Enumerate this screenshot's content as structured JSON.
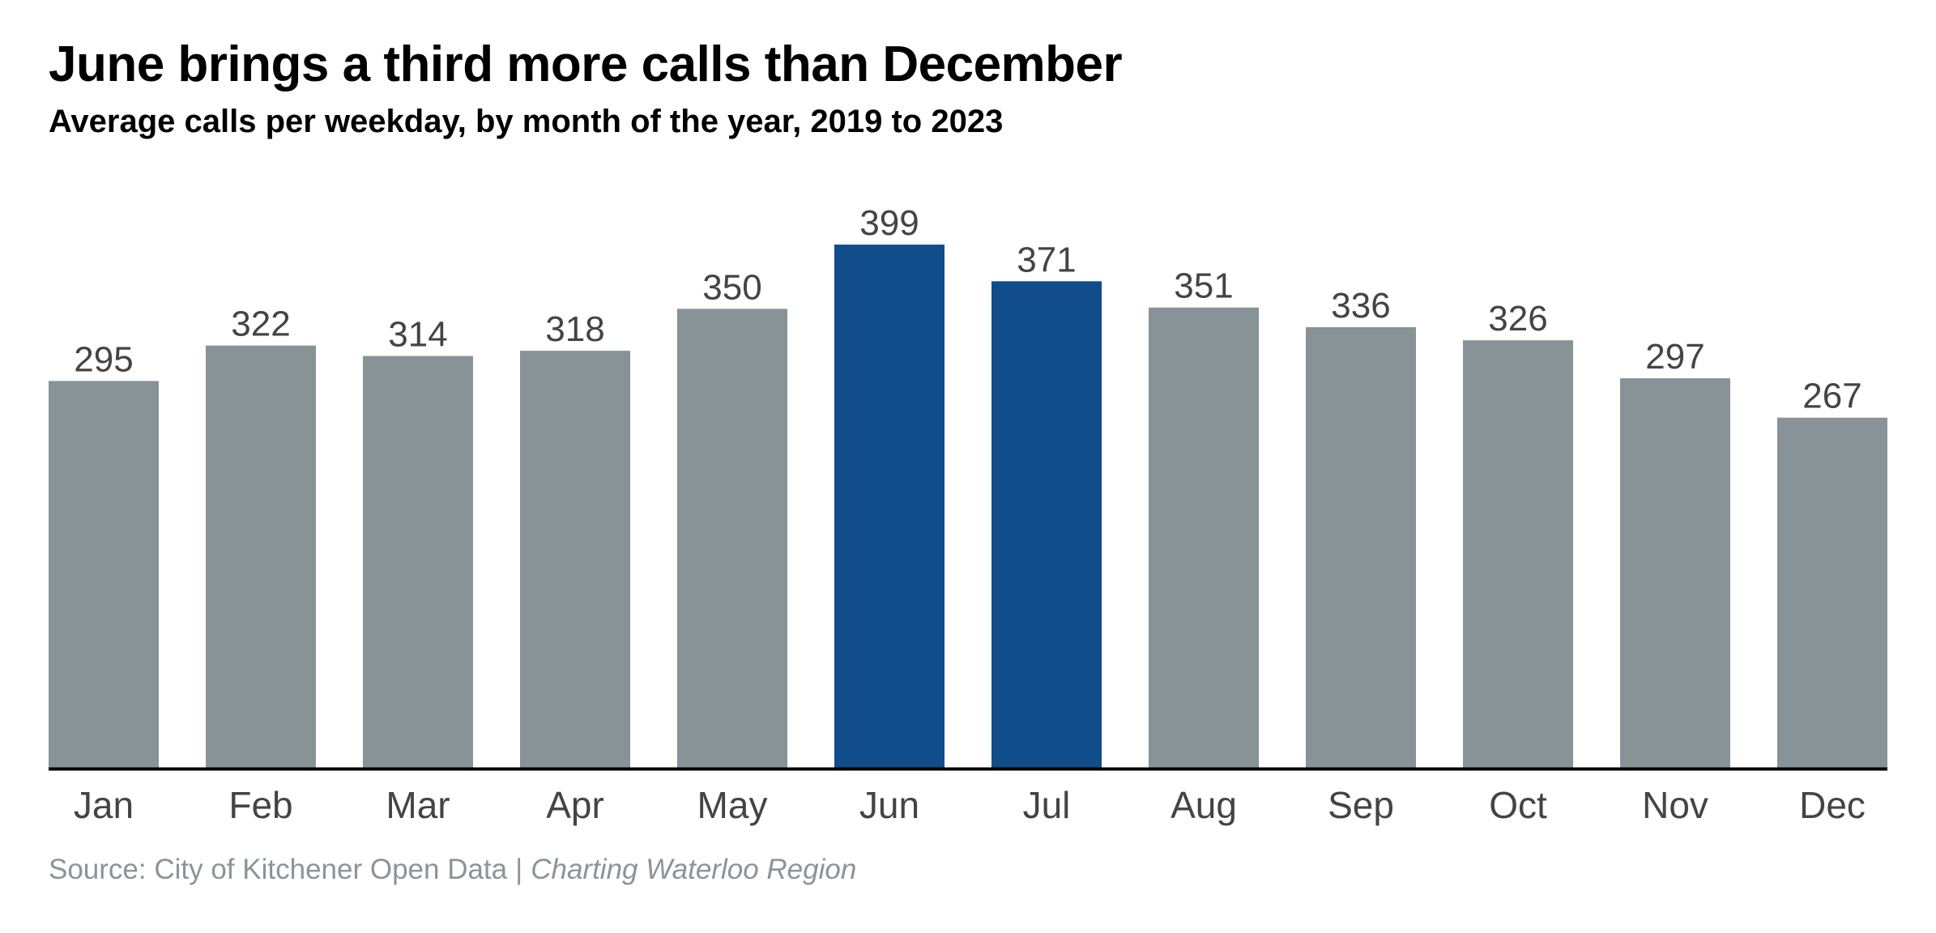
{
  "title": "June brings a third more calls than December",
  "subtitle": "Average calls per weekday, by month of the year, 2019 to 2023",
  "source": {
    "text": "Source: City of Kitchener Open Data",
    "separator": "|",
    "credit": "Charting Waterloo Region"
  },
  "colors": {
    "default_bar": "#879396",
    "highlight_bar": "#114d8a",
    "value_label": "#444444",
    "tick_label": "#444444",
    "axis_line": "#000000"
  },
  "chart_data": {
    "type": "bar",
    "title": "June brings a third more calls than December",
    "subtitle": "Average calls per weekday, by month of the year, 2019 to 2023",
    "categories": [
      "Jan",
      "Feb",
      "Mar",
      "Apr",
      "May",
      "Jun",
      "Jul",
      "Aug",
      "Sep",
      "Oct",
      "Nov",
      "Dec"
    ],
    "values": [
      295,
      322,
      314,
      318,
      350,
      399,
      371,
      351,
      336,
      326,
      297,
      267
    ],
    "value_labels": [
      "295",
      "322",
      "314",
      "318",
      "350",
      "399",
      "371",
      "351",
      "336",
      "326",
      "297",
      "267"
    ],
    "highlighted": [
      "Jun",
      "Jul"
    ],
    "ylim": [
      0,
      399
    ],
    "grid": false,
    "legend": "none"
  }
}
